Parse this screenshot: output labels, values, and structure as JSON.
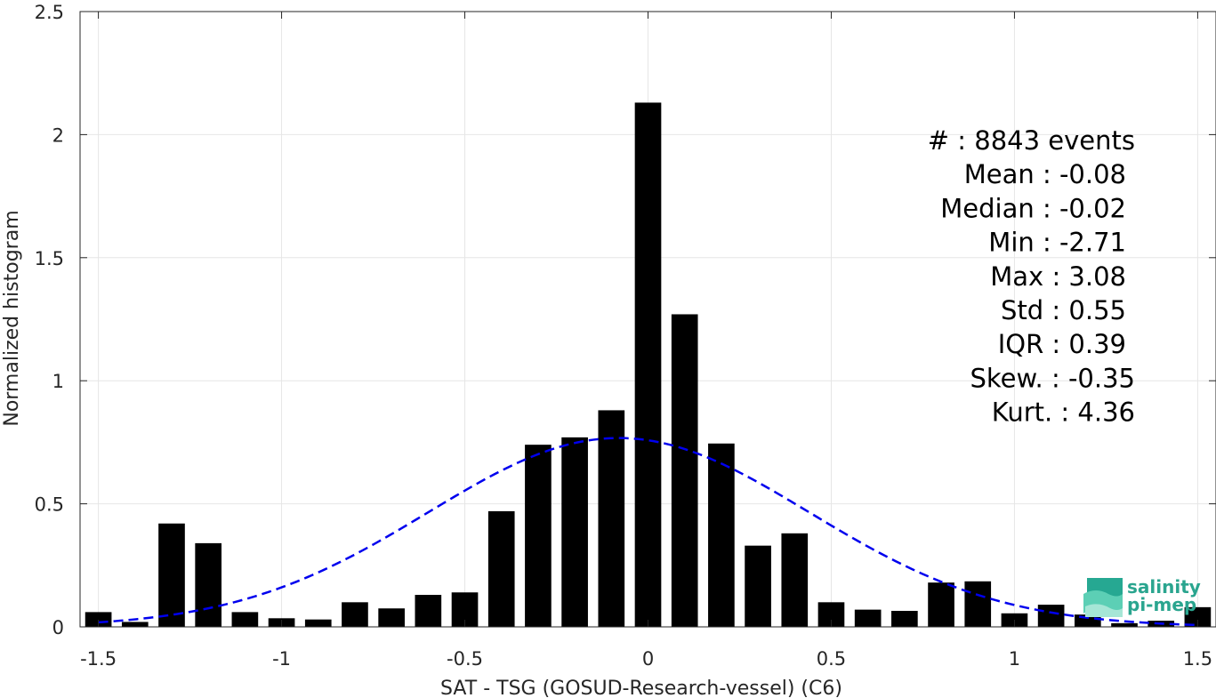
{
  "chart_data": {
    "type": "bar",
    "xlabel": "SAT - TSG (GOSUD-Research-vessel) (C6)",
    "ylabel": "Normalized histogram",
    "xlim": [
      -1.55,
      1.55
    ],
    "ylim": [
      0,
      2.5
    ],
    "grid": true,
    "xticks": [
      -1.5,
      -1,
      -0.5,
      0,
      0.5,
      1,
      1.5
    ],
    "xtick_labels": [
      "-1.5",
      "-1",
      "-0.5",
      "0",
      "0.5",
      "1",
      "1.5"
    ],
    "yticks": [
      0,
      0.5,
      1,
      1.5,
      2,
      2.5
    ],
    "ytick_labels": [
      "0",
      "0.5",
      "1",
      "1.5",
      "2",
      "2.5"
    ],
    "bin_width": 0.1,
    "x": [
      -1.5,
      -1.4,
      -1.3,
      -1.2,
      -1.1,
      -1.0,
      -0.9,
      -0.8,
      -0.7,
      -0.6,
      -0.5,
      -0.4,
      -0.3,
      -0.2,
      -0.1,
      0.0,
      0.1,
      0.2,
      0.3,
      0.4,
      0.5,
      0.6,
      0.7,
      0.8,
      0.9,
      1.0,
      1.1,
      1.2,
      1.3,
      1.4,
      1.5
    ],
    "values": [
      0.06,
      0.02,
      0.42,
      0.34,
      0.06,
      0.035,
      0.03,
      0.1,
      0.075,
      0.13,
      0.14,
      0.47,
      0.74,
      0.77,
      0.88,
      2.13,
      1.27,
      0.745,
      0.33,
      0.38,
      0.1,
      0.07,
      0.065,
      0.18,
      0.185,
      0.055,
      0.09,
      0.05,
      0.015,
      0.025,
      0.08
    ],
    "bar_color": "#000000",
    "fit": {
      "type": "gaussian",
      "mean": -0.08,
      "std": 0.52,
      "color": "#0000ee",
      "style": "dashed"
    },
    "stats": [
      {
        "label": "#  : 8843 events"
      },
      {
        "label": "Mean : -0.08"
      },
      {
        "label": "Median : -0.02"
      },
      {
        "label": "Min : -2.71"
      },
      {
        "label": "Max : 3.08"
      },
      {
        "label": "Std : 0.55"
      },
      {
        "label": "IQR : 0.39"
      },
      {
        "label": "Skew. : -0.35"
      },
      {
        "label": "Kurt. : 4.36"
      }
    ]
  },
  "logo": {
    "line1": "salinity",
    "line2": "pi-mep",
    "color": "#2aa58f"
  }
}
